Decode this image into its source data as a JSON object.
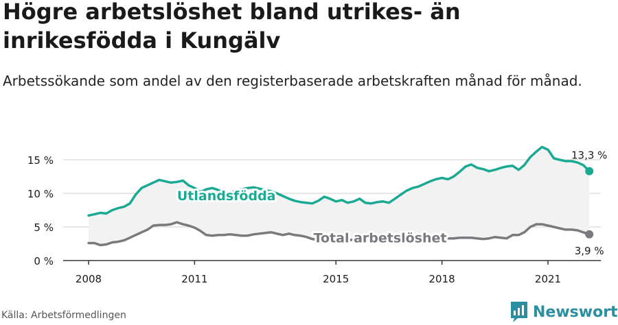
{
  "title": "Högre arbetslöshet bland utrikes- än inrikesfödda i Kungälv",
  "subtitle": "Arbetssökande som andel av den registerbaserade arbetskraften månad för månad.",
  "source": "Källa: Arbetsförmedlingen",
  "brand": {
    "name": "Newsworthy",
    "icon": "newsworthy-logo-icon"
  },
  "colors": {
    "foreign": "#1aaa94",
    "total": "#7a7a7e",
    "band": "#f2f2f2",
    "text": "#1a1a1a"
  },
  "chart_data": {
    "type": "line",
    "title": "",
    "xlabel": "",
    "ylabel": "",
    "ylim": [
      0,
      18
    ],
    "xlim": [
      2008,
      2022.5
    ],
    "yticks": [
      0,
      5,
      10,
      15
    ],
    "ytick_labels": [
      "0 %",
      "5 %",
      "10 %",
      "15 %"
    ],
    "xticks": [
      2008,
      2011,
      2015,
      2018,
      2021
    ],
    "xtick_labels": [
      "2008",
      "2011",
      "2015",
      "2018",
      "2021"
    ],
    "grid": "horizontal",
    "shaded_between_series": true,
    "series": [
      {
        "name": "Utlandsfödda",
        "color": "#1aaa94",
        "end_label": "13,3 %",
        "points": [
          [
            2008.0,
            6.7
          ],
          [
            2008.17,
            6.9
          ],
          [
            2008.33,
            7.1
          ],
          [
            2008.5,
            7.0
          ],
          [
            2008.67,
            7.5
          ],
          [
            2008.83,
            7.8
          ],
          [
            2009.0,
            8.0
          ],
          [
            2009.17,
            8.5
          ],
          [
            2009.33,
            9.8
          ],
          [
            2009.5,
            10.8
          ],
          [
            2009.67,
            11.2
          ],
          [
            2009.83,
            11.6
          ],
          [
            2010.0,
            12.0
          ],
          [
            2010.17,
            11.8
          ],
          [
            2010.33,
            11.6
          ],
          [
            2010.5,
            11.7
          ],
          [
            2010.67,
            11.9
          ],
          [
            2010.83,
            11.2
          ],
          [
            2011.0,
            10.8
          ],
          [
            2011.17,
            10.2
          ],
          [
            2011.33,
            10.6
          ],
          [
            2011.5,
            10.8
          ],
          [
            2011.67,
            10.5
          ],
          [
            2011.83,
            10.0
          ],
          [
            2012.0,
            10.1
          ],
          [
            2012.17,
            10.4
          ],
          [
            2012.33,
            10.6
          ],
          [
            2012.5,
            10.8
          ],
          [
            2012.67,
            10.9
          ],
          [
            2012.83,
            10.7
          ],
          [
            2013.0,
            10.5
          ],
          [
            2013.17,
            10.3
          ],
          [
            2013.33,
            10.0
          ],
          [
            2013.5,
            9.6
          ],
          [
            2013.67,
            9.2
          ],
          [
            2013.83,
            8.9
          ],
          [
            2014.0,
            8.7
          ],
          [
            2014.17,
            8.6
          ],
          [
            2014.33,
            8.5
          ],
          [
            2014.5,
            8.9
          ],
          [
            2014.67,
            9.5
          ],
          [
            2014.83,
            9.2
          ],
          [
            2015.0,
            8.8
          ],
          [
            2015.17,
            9.0
          ],
          [
            2015.33,
            8.6
          ],
          [
            2015.5,
            8.8
          ],
          [
            2015.67,
            9.2
          ],
          [
            2015.83,
            8.6
          ],
          [
            2016.0,
            8.5
          ],
          [
            2016.17,
            8.7
          ],
          [
            2016.33,
            8.8
          ],
          [
            2016.5,
            8.6
          ],
          [
            2016.67,
            9.2
          ],
          [
            2016.83,
            9.8
          ],
          [
            2017.0,
            10.4
          ],
          [
            2017.17,
            10.8
          ],
          [
            2017.33,
            11.0
          ],
          [
            2017.5,
            11.4
          ],
          [
            2017.67,
            11.8
          ],
          [
            2017.83,
            12.1
          ],
          [
            2018.0,
            12.3
          ],
          [
            2018.17,
            12.1
          ],
          [
            2018.33,
            12.5
          ],
          [
            2018.5,
            13.2
          ],
          [
            2018.67,
            14.0
          ],
          [
            2018.83,
            14.3
          ],
          [
            2019.0,
            13.8
          ],
          [
            2019.17,
            13.6
          ],
          [
            2019.33,
            13.3
          ],
          [
            2019.5,
            13.5
          ],
          [
            2019.67,
            13.8
          ],
          [
            2019.83,
            14.0
          ],
          [
            2020.0,
            14.1
          ],
          [
            2020.17,
            13.5
          ],
          [
            2020.33,
            14.2
          ],
          [
            2020.5,
            15.4
          ],
          [
            2020.67,
            16.2
          ],
          [
            2020.83,
            16.9
          ],
          [
            2021.0,
            16.5
          ],
          [
            2021.17,
            15.2
          ],
          [
            2021.33,
            15.0
          ],
          [
            2021.5,
            14.8
          ],
          [
            2021.67,
            14.8
          ],
          [
            2021.83,
            14.6
          ],
          [
            2022.0,
            14.2
          ],
          [
            2022.17,
            13.3
          ]
        ]
      },
      {
        "name": "Total arbetslöshet",
        "color": "#7a7a7e",
        "end_label": "3,9 %",
        "points": [
          [
            2008.0,
            2.6
          ],
          [
            2008.17,
            2.6
          ],
          [
            2008.33,
            2.3
          ],
          [
            2008.5,
            2.4
          ],
          [
            2008.67,
            2.7
          ],
          [
            2008.83,
            2.8
          ],
          [
            2009.0,
            3.0
          ],
          [
            2009.17,
            3.4
          ],
          [
            2009.33,
            3.8
          ],
          [
            2009.5,
            4.2
          ],
          [
            2009.67,
            4.6
          ],
          [
            2009.83,
            5.2
          ],
          [
            2010.0,
            5.3
          ],
          [
            2010.17,
            5.3
          ],
          [
            2010.33,
            5.4
          ],
          [
            2010.5,
            5.7
          ],
          [
            2010.67,
            5.4
          ],
          [
            2010.83,
            5.2
          ],
          [
            2011.0,
            4.9
          ],
          [
            2011.17,
            4.4
          ],
          [
            2011.33,
            3.8
          ],
          [
            2011.5,
            3.7
          ],
          [
            2011.67,
            3.8
          ],
          [
            2011.83,
            3.8
          ],
          [
            2012.0,
            3.9
          ],
          [
            2012.17,
            3.8
          ],
          [
            2012.33,
            3.7
          ],
          [
            2012.5,
            3.7
          ],
          [
            2012.67,
            3.9
          ],
          [
            2012.83,
            4.0
          ],
          [
            2013.0,
            4.1
          ],
          [
            2013.17,
            4.2
          ],
          [
            2013.33,
            4.0
          ],
          [
            2013.5,
            3.8
          ],
          [
            2013.67,
            4.0
          ],
          [
            2013.83,
            3.8
          ],
          [
            2014.0,
            3.7
          ],
          [
            2014.17,
            3.5
          ],
          [
            2014.33,
            3.2
          ],
          [
            2014.5,
            3.1
          ],
          [
            2014.67,
            3.2
          ],
          [
            2014.83,
            3.3
          ],
          [
            2015.0,
            3.4
          ],
          [
            2015.17,
            3.0
          ],
          [
            2015.33,
            3.0
          ],
          [
            2015.5,
            3.1
          ],
          [
            2015.67,
            3.2
          ],
          [
            2015.83,
            3.2
          ],
          [
            2016.0,
            3.1
          ],
          [
            2016.17,
            3.0
          ],
          [
            2016.33,
            3.0
          ],
          [
            2016.5,
            3.0
          ],
          [
            2016.67,
            3.0
          ],
          [
            2016.83,
            3.1
          ],
          [
            2017.0,
            3.2
          ],
          [
            2017.17,
            3.3
          ],
          [
            2017.33,
            3.3
          ],
          [
            2017.5,
            3.3
          ],
          [
            2017.67,
            3.4
          ],
          [
            2017.83,
            3.4
          ],
          [
            2018.0,
            3.3
          ],
          [
            2018.17,
            3.3
          ],
          [
            2018.33,
            3.3
          ],
          [
            2018.5,
            3.4
          ],
          [
            2018.67,
            3.4
          ],
          [
            2018.83,
            3.4
          ],
          [
            2019.0,
            3.3
          ],
          [
            2019.17,
            3.2
          ],
          [
            2019.33,
            3.3
          ],
          [
            2019.5,
            3.5
          ],
          [
            2019.67,
            3.4
          ],
          [
            2019.83,
            3.3
          ],
          [
            2020.0,
            3.8
          ],
          [
            2020.17,
            3.8
          ],
          [
            2020.33,
            4.2
          ],
          [
            2020.5,
            5.0
          ],
          [
            2020.67,
            5.4
          ],
          [
            2020.83,
            5.4
          ],
          [
            2021.0,
            5.2
          ],
          [
            2021.17,
            5.0
          ],
          [
            2021.33,
            4.8
          ],
          [
            2021.5,
            4.6
          ],
          [
            2021.67,
            4.6
          ],
          [
            2021.83,
            4.5
          ],
          [
            2022.0,
            4.2
          ],
          [
            2022.17,
            3.9
          ]
        ]
      }
    ]
  }
}
